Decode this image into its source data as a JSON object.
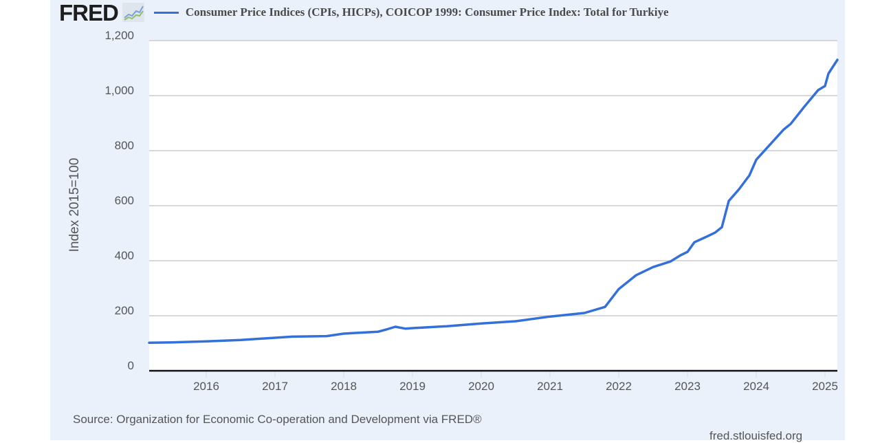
{
  "header": {
    "logo_text": "FRED",
    "logo_icon": "line-chart-icon",
    "legend_label": "Consumer Price Indices (CPIs, HICPs), COICOP 1999: Consumer Price Index: Total for Turkiye"
  },
  "footer": {
    "source": "Source: Organization for Economic Co-operation and Development via FRED®",
    "site": "fred.stlouisfed.org"
  },
  "colors": {
    "series": "#3370d9",
    "panel_background": "#eaf1fa",
    "gridline": "#cccccc",
    "text": "#555555"
  },
  "chart_data": {
    "type": "line",
    "title": "Consumer Price Indices (CPIs, HICPs), COICOP 1999: Consumer Price Index: Total for Turkiye",
    "xlabel": "",
    "ylabel": "Index 2015=100",
    "xlim": [
      2015.17,
      2025.18
    ],
    "ylim": [
      0,
      1200
    ],
    "grid": true,
    "legend": "top",
    "y_ticks": [
      0,
      200,
      400,
      600,
      800,
      1000,
      1200
    ],
    "y_tick_labels": [
      "0",
      "200",
      "400",
      "600",
      "800",
      "1,000",
      "1,200"
    ],
    "x_ticks": [
      2016,
      2017,
      2018,
      2019,
      2020,
      2021,
      2022,
      2023,
      2024,
      2025
    ],
    "x_tick_labels": [
      "2016",
      "2017",
      "2018",
      "2019",
      "2020",
      "2021",
      "2022",
      "2023",
      "2024",
      "2025"
    ],
    "series": [
      {
        "name": "Consumer Price Index: Total for Turkiye",
        "x": [
          2015.17,
          2015.5,
          2016.0,
          2016.5,
          2017.0,
          2017.25,
          2017.75,
          2018.0,
          2018.5,
          2018.62,
          2018.75,
          2018.9,
          2019.0,
          2019.5,
          2020.0,
          2020.5,
          2021.0,
          2021.5,
          2021.8,
          2022.0,
          2022.25,
          2022.5,
          2022.75,
          2022.9,
          2023.0,
          2023.1,
          2023.3,
          2023.4,
          2023.5,
          2023.6,
          2023.75,
          2023.9,
          2024.0,
          2024.2,
          2024.4,
          2024.5,
          2024.7,
          2024.9,
          2025.0,
          2025.05,
          2025.18
        ],
        "values": [
          102,
          103,
          107,
          112,
          120,
          124,
          126,
          135,
          142,
          150,
          160,
          153,
          155,
          162,
          172,
          180,
          197,
          210,
          232,
          297,
          347,
          377,
          397,
          420,
          432,
          467,
          490,
          502,
          522,
          617,
          660,
          710,
          767,
          822,
          877,
          897,
          960,
          1020,
          1035,
          1080,
          1130
        ]
      }
    ]
  }
}
